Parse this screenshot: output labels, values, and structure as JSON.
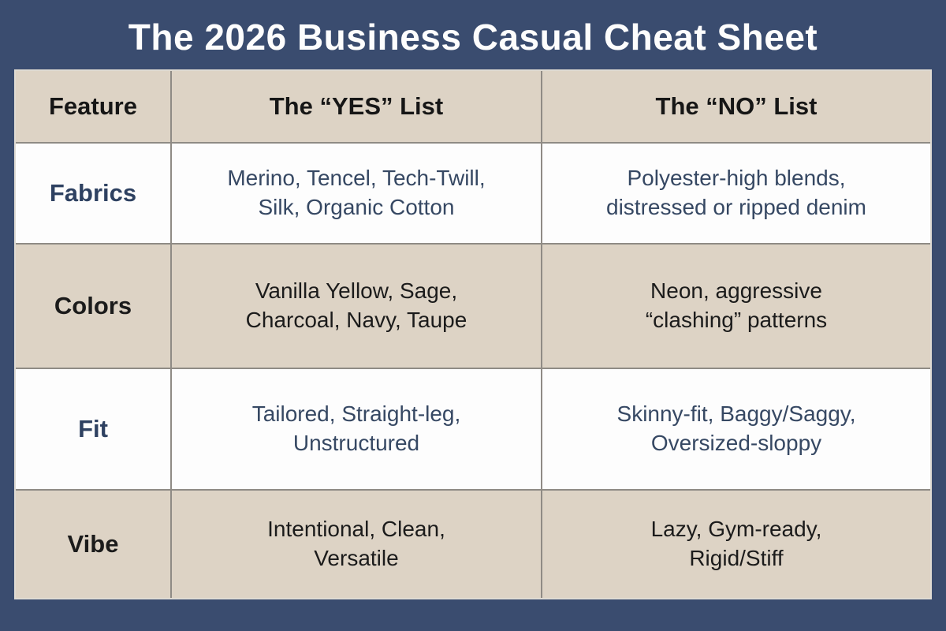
{
  "title": "The 2026 Business Casual Cheat Sheet",
  "colors": {
    "frame_navy": "#3a4c6f",
    "cell_beige": "#ddd3c5",
    "cell_white": "#fdfdfd",
    "grid_line_gray": "#8f8b85",
    "outer_hairline": "#dfdbd3",
    "title_text": "#fdfdfd",
    "navy_text": "#364863",
    "black_text": "#1b1b1b"
  },
  "table": {
    "headers": [
      "Feature",
      "The “YES” List",
      "The “NO” List"
    ],
    "rows": [
      {
        "feature": "Fabrics",
        "yes": "Merino, Tencel, Tech-Twill,\nSilk, Organic Cotton",
        "no": "Polyester-high blends,\ndistressed or ripped denim"
      },
      {
        "feature": "Colors",
        "yes": "Vanilla Yellow, Sage,\nCharcoal, Navy, Taupe",
        "no": "Neon, aggressive\n“clashing” patterns"
      },
      {
        "feature": "Fit",
        "yes": "Tailored, Straight-leg,\nUnstructured",
        "no": "Skinny-fit, Baggy/Saggy,\nOversized-sloppy"
      },
      {
        "feature": "Vibe",
        "yes": "Intentional, Clean,\nVersatile",
        "no": "Lazy, Gym-ready,\nRigid/Stiff"
      }
    ]
  }
}
